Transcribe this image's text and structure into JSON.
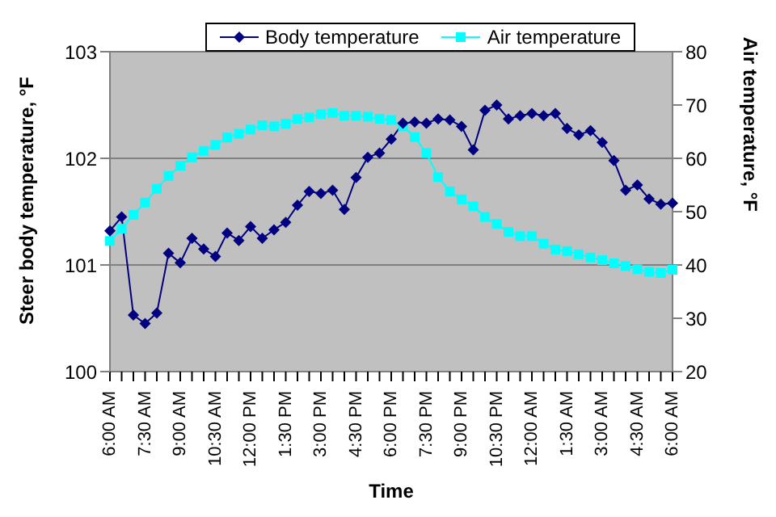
{
  "chart_data": {
    "type": "line",
    "xlabel": "Time",
    "ylabel": "Steer body temperature, °F",
    "y2label": "Air temperature, °F",
    "categories": [
      "6:00 AM",
      null,
      null,
      "7:30 AM",
      null,
      null,
      "9:00 AM",
      null,
      null,
      "10:30 AM",
      null,
      null,
      "12:00 PM",
      null,
      null,
      "1:30 PM",
      null,
      null,
      "3:00 PM",
      null,
      null,
      "4:30 PM",
      null,
      null,
      "6:00 PM",
      null,
      null,
      "7:30 PM",
      null,
      null,
      "9:00 PM",
      null,
      null,
      "10:30 PM",
      null,
      null,
      "12:00 AM",
      null,
      null,
      "1:30 AM",
      null,
      null,
      "3:00 AM",
      null,
      null,
      "4:30 AM",
      null,
      null,
      "6:00 AM"
    ],
    "ylim": [
      100,
      103
    ],
    "yticks": [
      100,
      101,
      102,
      103
    ],
    "y2lim": [
      20,
      80
    ],
    "y2ticks": [
      20,
      30,
      40,
      50,
      60,
      70,
      80
    ],
    "grid": "y",
    "legend": "top",
    "series": [
      {
        "name": "Body temperature",
        "color": "#000080",
        "marker": "diamond",
        "line_style": "solid",
        "values": [
          101.32,
          101.45,
          100.53,
          100.45,
          100.55,
          101.11,
          101.02,
          101.25,
          101.15,
          101.08,
          101.3,
          101.23,
          101.36,
          101.25,
          101.33,
          101.4,
          101.56,
          101.69,
          101.67,
          101.7,
          101.52,
          101.82,
          102.01,
          102.05,
          102.18,
          102.33,
          102.34,
          102.33,
          102.37,
          102.36,
          102.3,
          102.08,
          102.45,
          102.5,
          102.37,
          102.4,
          102.42,
          102.4,
          102.42,
          102.28,
          102.22,
          102.26,
          102.15,
          101.98,
          101.7,
          101.75,
          101.62,
          101.57,
          101.58
        ]
      },
      {
        "name": "Air temperature",
        "color": "#00ffff",
        "marker": "square",
        "line_style": "solid",
        "axis": "y2",
        "values": [
          44.5,
          46.8,
          49.4,
          51.7,
          54.3,
          56.7,
          58.6,
          60.2,
          61.4,
          62.5,
          63.9,
          64.6,
          65.4,
          66.2,
          66.0,
          66.5,
          67.4,
          67.7,
          68.3,
          68.5,
          68.0,
          68.0,
          67.8,
          67.4,
          67.2,
          66.0,
          64.0,
          61.0,
          56.5,
          53.8,
          52.3,
          51.0,
          49.0,
          47.7,
          46.2,
          45.4,
          45.4,
          44.0,
          42.9,
          42.6,
          42.0,
          41.4,
          40.9,
          40.3,
          39.8,
          39.2,
          38.7,
          38.5,
          39.1
        ]
      }
    ]
  }
}
